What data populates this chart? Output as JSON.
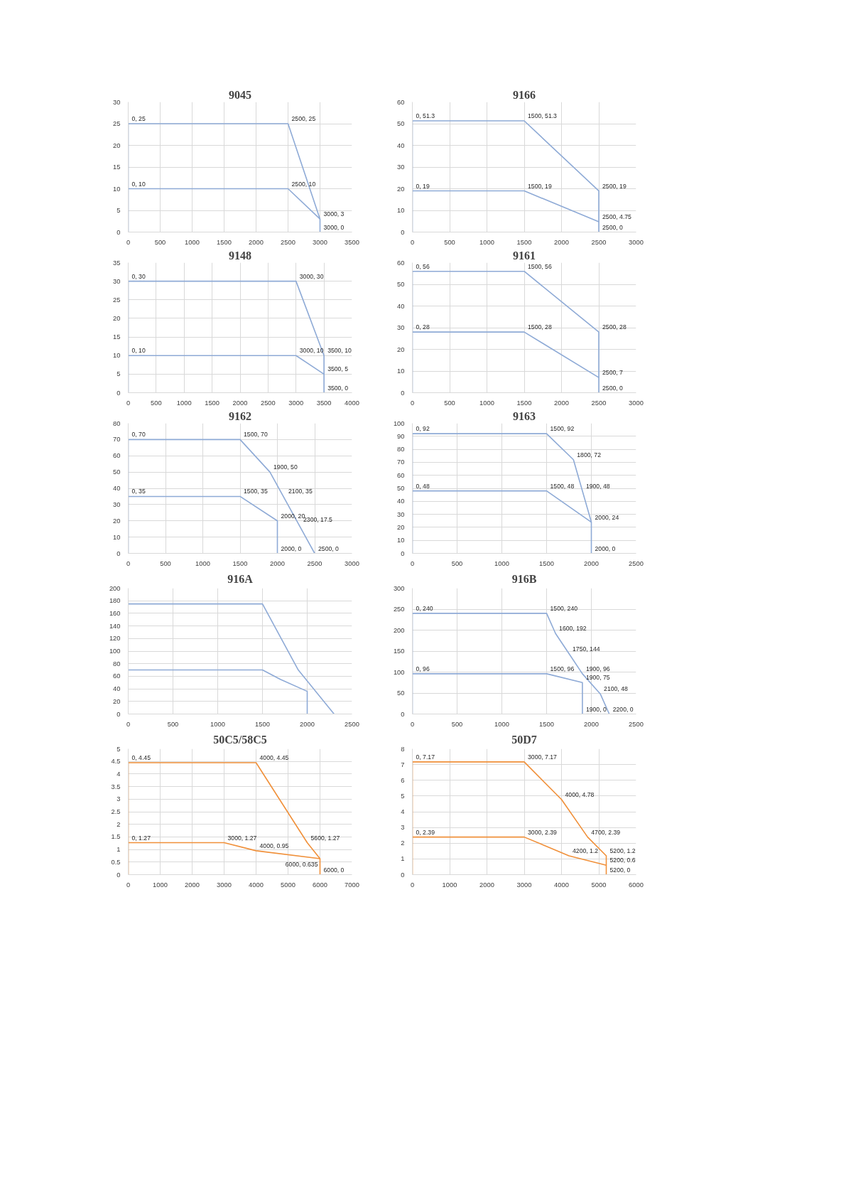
{
  "chart_data": [
    {
      "type": "line",
      "title": "9045",
      "xlim": [
        0,
        3500
      ],
      "xticks": [
        0,
        500,
        1000,
        1500,
        2000,
        2500,
        3000,
        3500
      ],
      "ylim": [
        0,
        30
      ],
      "yticks": [
        0,
        5,
        10,
        15,
        20,
        25,
        30
      ],
      "grid": true,
      "marker": "none",
      "line_style": "solid",
      "series": [
        {
          "color": "#8eaad6",
          "x": [
            0,
            0,
            2500,
            3000,
            3000
          ],
          "values": [
            0,
            25,
            25,
            3,
            0
          ]
        },
        {
          "color": "#8eaad6",
          "x": [
            0,
            2500,
            3000
          ],
          "values": [
            10,
            10,
            3
          ]
        }
      ],
      "annotations": [
        {
          "text": "0, 25",
          "x": 0,
          "y": 25
        },
        {
          "text": "2500, 25",
          "x": 2500,
          "y": 25
        },
        {
          "text": "0, 10",
          "x": 0,
          "y": 10
        },
        {
          "text": "2500, 10",
          "x": 2500,
          "y": 10
        },
        {
          "text": "3000, 3",
          "x": 3000,
          "y": 3
        },
        {
          "text": "3000, 0",
          "x": 3000,
          "y": 0
        }
      ]
    },
    {
      "type": "line",
      "title": "9166",
      "xlim": [
        0,
        3000
      ],
      "xticks": [
        0,
        500,
        1000,
        1500,
        2000,
        2500,
        3000
      ],
      "ylim": [
        0,
        60
      ],
      "yticks": [
        0,
        10,
        20,
        30,
        40,
        50,
        60
      ],
      "grid": true,
      "marker": "none",
      "line_style": "solid",
      "series": [
        {
          "color": "#8eaad6",
          "x": [
            0,
            0,
            1500,
            2500,
            2500
          ],
          "values": [
            0,
            51.3,
            51.3,
            19,
            0
          ]
        },
        {
          "color": "#8eaad6",
          "x": [
            0,
            1500,
            2500
          ],
          "values": [
            19,
            19,
            4.75
          ]
        }
      ],
      "annotations": [
        {
          "text": "0, 51.3",
          "x": 0,
          "y": 51.3
        },
        {
          "text": "1500, 51.3",
          "x": 1500,
          "y": 51.3
        },
        {
          "text": "2500, 19",
          "x": 2500,
          "y": 19
        },
        {
          "text": "0, 19",
          "x": 0,
          "y": 19
        },
        {
          "text": "1500, 19",
          "x": 1500,
          "y": 19
        },
        {
          "text": "2500, 4.75",
          "x": 2500,
          "y": 4.75
        },
        {
          "text": "2500, 0",
          "x": 2500,
          "y": 0
        }
      ]
    },
    {
      "type": "line",
      "title": "9148",
      "xlim": [
        0,
        4000
      ],
      "xticks": [
        0,
        500,
        1000,
        1500,
        2000,
        2500,
        3000,
        3500,
        4000
      ],
      "ylim": [
        0,
        35
      ],
      "yticks": [
        0,
        5,
        10,
        15,
        20,
        25,
        30,
        35
      ],
      "grid": true,
      "marker": "none",
      "line_style": "solid",
      "series": [
        {
          "color": "#8eaad6",
          "x": [
            0,
            0,
            3000,
            3500,
            3500
          ],
          "values": [
            0,
            30,
            30,
            10,
            0
          ]
        },
        {
          "color": "#8eaad6",
          "x": [
            0,
            3000,
            3500
          ],
          "values": [
            10,
            10,
            5
          ]
        }
      ],
      "annotations": [
        {
          "text": "0, 30",
          "x": 0,
          "y": 30
        },
        {
          "text": "3000, 30",
          "x": 3000,
          "y": 30
        },
        {
          "text": "0, 10",
          "x": 0,
          "y": 10
        },
        {
          "text": "3000, 10",
          "x": 3000,
          "y": 10
        },
        {
          "text": "3500, 10",
          "x": 3500,
          "y": 10
        },
        {
          "text": "3500, 5",
          "x": 3500,
          "y": 5
        },
        {
          "text": "3500, 0",
          "x": 3500,
          "y": 0
        }
      ]
    },
    {
      "type": "line",
      "title": "9161",
      "xlim": [
        0,
        3000
      ],
      "xticks": [
        0,
        500,
        1000,
        1500,
        2000,
        2500,
        3000
      ],
      "ylim": [
        0,
        60
      ],
      "yticks": [
        0,
        10,
        20,
        30,
        40,
        50,
        60
      ],
      "grid": true,
      "marker": "none",
      "line_style": "solid",
      "series": [
        {
          "color": "#8eaad6",
          "x": [
            0,
            0,
            1500,
            2500,
            2500
          ],
          "values": [
            0,
            56,
            56,
            28,
            0
          ]
        },
        {
          "color": "#8eaad6",
          "x": [
            0,
            1500,
            2500
          ],
          "values": [
            28,
            28,
            7
          ]
        }
      ],
      "annotations": [
        {
          "text": "0, 56",
          "x": 0,
          "y": 56
        },
        {
          "text": "1500, 56",
          "x": 1500,
          "y": 56
        },
        {
          "text": "2500, 28",
          "x": 2500,
          "y": 28
        },
        {
          "text": "0, 28",
          "x": 0,
          "y": 28
        },
        {
          "text": "1500, 28",
          "x": 1500,
          "y": 28
        },
        {
          "text": "2500, 7",
          "x": 2500,
          "y": 7
        },
        {
          "text": "2500, 0",
          "x": 2500,
          "y": 0
        }
      ]
    },
    {
      "type": "line",
      "title": "9162",
      "xlim": [
        0,
        3000
      ],
      "xticks": [
        0,
        500,
        1000,
        1500,
        2000,
        2500,
        3000
      ],
      "ylim": [
        0,
        80
      ],
      "yticks": [
        0,
        10,
        20,
        30,
        40,
        50,
        60,
        70,
        80
      ],
      "grid": true,
      "marker": "none",
      "line_style": "solid",
      "series": [
        {
          "color": "#8eaad6",
          "x": [
            0,
            0,
            1500,
            1900,
            2500
          ],
          "values": [
            0,
            70,
            70,
            50,
            0
          ]
        },
        {
          "color": "#8eaad6",
          "x": [
            0,
            1500,
            2000,
            2000
          ],
          "values": [
            35,
            35,
            20,
            0
          ]
        }
      ],
      "annotations": [
        {
          "text": "0, 70",
          "x": 0,
          "y": 70
        },
        {
          "text": "1500, 70",
          "x": 1500,
          "y": 70
        },
        {
          "text": "1900, 50",
          "x": 1900,
          "y": 50
        },
        {
          "text": "2100, 35",
          "x": 2100,
          "y": 35
        },
        {
          "text": "2300, 17.5",
          "x": 2300,
          "y": 17.5
        },
        {
          "text": "2500, 0",
          "x": 2500,
          "y": 0
        },
        {
          "text": "0, 35",
          "x": 0,
          "y": 35
        },
        {
          "text": "1500, 35",
          "x": 1500,
          "y": 35
        },
        {
          "text": "2000, 20",
          "x": 2000,
          "y": 20
        },
        {
          "text": "2000, 0",
          "x": 2000,
          "y": 0
        }
      ]
    },
    {
      "type": "line",
      "title": "9163",
      "xlim": [
        0,
        2500
      ],
      "xticks": [
        0,
        500,
        1000,
        1500,
        2000,
        2500
      ],
      "ylim": [
        0,
        100
      ],
      "yticks": [
        0,
        10,
        20,
        30,
        40,
        50,
        60,
        70,
        80,
        90,
        100
      ],
      "grid": true,
      "marker": "none",
      "line_style": "solid",
      "series": [
        {
          "color": "#8eaad6",
          "x": [
            0,
            0,
            1500,
            1800,
            2000,
            2000
          ],
          "values": [
            0,
            92,
            92,
            72,
            24,
            0
          ]
        },
        {
          "color": "#8eaad6",
          "x": [
            0,
            1500,
            2000
          ],
          "values": [
            48,
            48,
            24
          ]
        }
      ],
      "annotations": [
        {
          "text": "0, 92",
          "x": 0,
          "y": 92
        },
        {
          "text": "1500, 92",
          "x": 1500,
          "y": 92
        },
        {
          "text": "1800, 72",
          "x": 1800,
          "y": 72
        },
        {
          "text": "0, 48",
          "x": 0,
          "y": 48
        },
        {
          "text": "1500, 48",
          "x": 1500,
          "y": 48
        },
        {
          "text": "1900, 48",
          "x": 1900,
          "y": 48
        },
        {
          "text": "2000, 24",
          "x": 2000,
          "y": 24
        },
        {
          "text": "2000, 0",
          "x": 2000,
          "y": 0
        }
      ]
    },
    {
      "type": "line",
      "title": "916A",
      "xlim": [
        0,
        2500
      ],
      "xticks": [
        0,
        500,
        1000,
        1500,
        2000,
        2500
      ],
      "ylim": [
        0,
        200
      ],
      "yticks": [
        0,
        20,
        40,
        60,
        80,
        100,
        120,
        140,
        160,
        180,
        200
      ],
      "grid": true,
      "marker": "none",
      "line_style": "solid",
      "series": [
        {
          "color": "#8eaad6",
          "x": [
            0,
            1500,
            1900,
            2300
          ],
          "values": [
            175,
            175,
            70,
            0
          ]
        },
        {
          "color": "#8eaad6",
          "x": [
            0,
            1500,
            1700,
            2000,
            2000
          ],
          "values": [
            70,
            70,
            55,
            36,
            0
          ]
        }
      ]
    },
    {
      "type": "line",
      "title": "916B",
      "xlim": [
        0,
        2500
      ],
      "xticks": [
        0,
        500,
        1000,
        1500,
        2000,
        2500
      ],
      "ylim": [
        0,
        300
      ],
      "yticks": [
        0,
        50,
        100,
        150,
        200,
        250,
        300
      ],
      "grid": true,
      "marker": "none",
      "line_style": "solid",
      "series": [
        {
          "color": "#8eaad6",
          "x": [
            0,
            0,
            1500,
            1600,
            1750,
            1900,
            2100,
            2200
          ],
          "values": [
            0,
            240,
            240,
            192,
            144,
            96,
            48,
            0
          ]
        },
        {
          "color": "#8eaad6",
          "x": [
            0,
            1500,
            1900,
            1900
          ],
          "values": [
            96,
            96,
            75,
            0
          ]
        }
      ],
      "annotations": [
        {
          "text": "0, 240",
          "x": 0,
          "y": 240
        },
        {
          "text": "1500, 240",
          "x": 1500,
          "y": 240
        },
        {
          "text": "1600, 192",
          "x": 1600,
          "y": 192
        },
        {
          "text": "1750, 144",
          "x": 1750,
          "y": 144
        },
        {
          "text": "1900, 96",
          "x": 1900,
          "y": 96
        },
        {
          "text": "2100, 48",
          "x": 2100,
          "y": 48
        },
        {
          "text": "2200, 0",
          "x": 2200,
          "y": 0
        },
        {
          "text": "0, 96",
          "x": 0,
          "y": 96
        },
        {
          "text": "1500, 96",
          "x": 1500,
          "y": 96
        },
        {
          "text": "1900, 75",
          "x": 1900,
          "y": 75
        },
        {
          "text": "1900, 0",
          "x": 1900,
          "y": 0
        }
      ]
    },
    {
      "type": "line",
      "title": "50C5/58C5",
      "xlim": [
        0,
        7000
      ],
      "xticks": [
        0,
        1000,
        2000,
        3000,
        4000,
        5000,
        6000,
        7000
      ],
      "ylim": [
        0,
        5
      ],
      "yticks": [
        0,
        0.5,
        1,
        1.5,
        2,
        2.5,
        3,
        3.5,
        4,
        4.5,
        5
      ],
      "grid": true,
      "marker": "none",
      "line_style": "solid",
      "series": [
        {
          "color": "#f0903a",
          "x": [
            0,
            0,
            4000,
            5600,
            6000,
            6000
          ],
          "values": [
            0,
            4.45,
            4.45,
            1.27,
            0.635,
            0
          ]
        },
        {
          "color": "#f0903a",
          "x": [
            0,
            3000,
            4000,
            6000
          ],
          "values": [
            1.27,
            1.27,
            0.95,
            0.635
          ]
        }
      ],
      "annotations": [
        {
          "text": "0, 4.45",
          "x": 0,
          "y": 4.45
        },
        {
          "text": "4000, 4.45",
          "x": 4000,
          "y": 4.45
        },
        {
          "text": "5600, 1.27",
          "x": 5600,
          "y": 1.27
        },
        {
          "text": "6000, 0.635",
          "x": 6000,
          "y": 0.635
        },
        {
          "text": "6000, 0",
          "x": 6000,
          "y": 0
        },
        {
          "text": "0, 1.27",
          "x": 0,
          "y": 1.27
        },
        {
          "text": "3000, 1.27",
          "x": 3000,
          "y": 1.27
        },
        {
          "text": "4000, 0.95",
          "x": 4000,
          "y": 0.95
        }
      ]
    },
    {
      "type": "line",
      "title": "50D7",
      "xlim": [
        0,
        6000
      ],
      "xticks": [
        0,
        1000,
        2000,
        3000,
        4000,
        5000,
        6000
      ],
      "ylim": [
        0,
        8
      ],
      "yticks": [
        0,
        1,
        2,
        3,
        4,
        5,
        6,
        7,
        8
      ],
      "grid": true,
      "marker": "none",
      "line_style": "solid",
      "series": [
        {
          "color": "#f0903a",
          "x": [
            0,
            0,
            3000,
            4000,
            4700,
            5200,
            5200
          ],
          "values": [
            0,
            7.17,
            7.17,
            4.78,
            2.39,
            1.2,
            0
          ]
        },
        {
          "color": "#f0903a",
          "x": [
            0,
            3000,
            4200,
            5200
          ],
          "values": [
            2.39,
            2.39,
            1.2,
            0.6
          ]
        }
      ],
      "annotations": [
        {
          "text": "0, 7.17",
          "x": 0,
          "y": 7.17
        },
        {
          "text": "3000, 7.17",
          "x": 3000,
          "y": 7.17
        },
        {
          "text": "4000, 4.78",
          "x": 4000,
          "y": 4.78
        },
        {
          "text": "4700, 2.39",
          "x": 4700,
          "y": 2.39
        },
        {
          "text": "5200, 1.2",
          "x": 5200,
          "y": 1.2
        },
        {
          "text": "0, 2.39",
          "x": 0,
          "y": 2.39
        },
        {
          "text": "3000, 2.39",
          "x": 3000,
          "y": 2.39
        },
        {
          "text": "4200, 1.2",
          "x": 4200,
          "y": 1.2
        },
        {
          "text": "5200, 0.6",
          "x": 5200,
          "y": 0.6
        },
        {
          "text": "5200, 0",
          "x": 5200,
          "y": 0
        }
      ]
    }
  ]
}
